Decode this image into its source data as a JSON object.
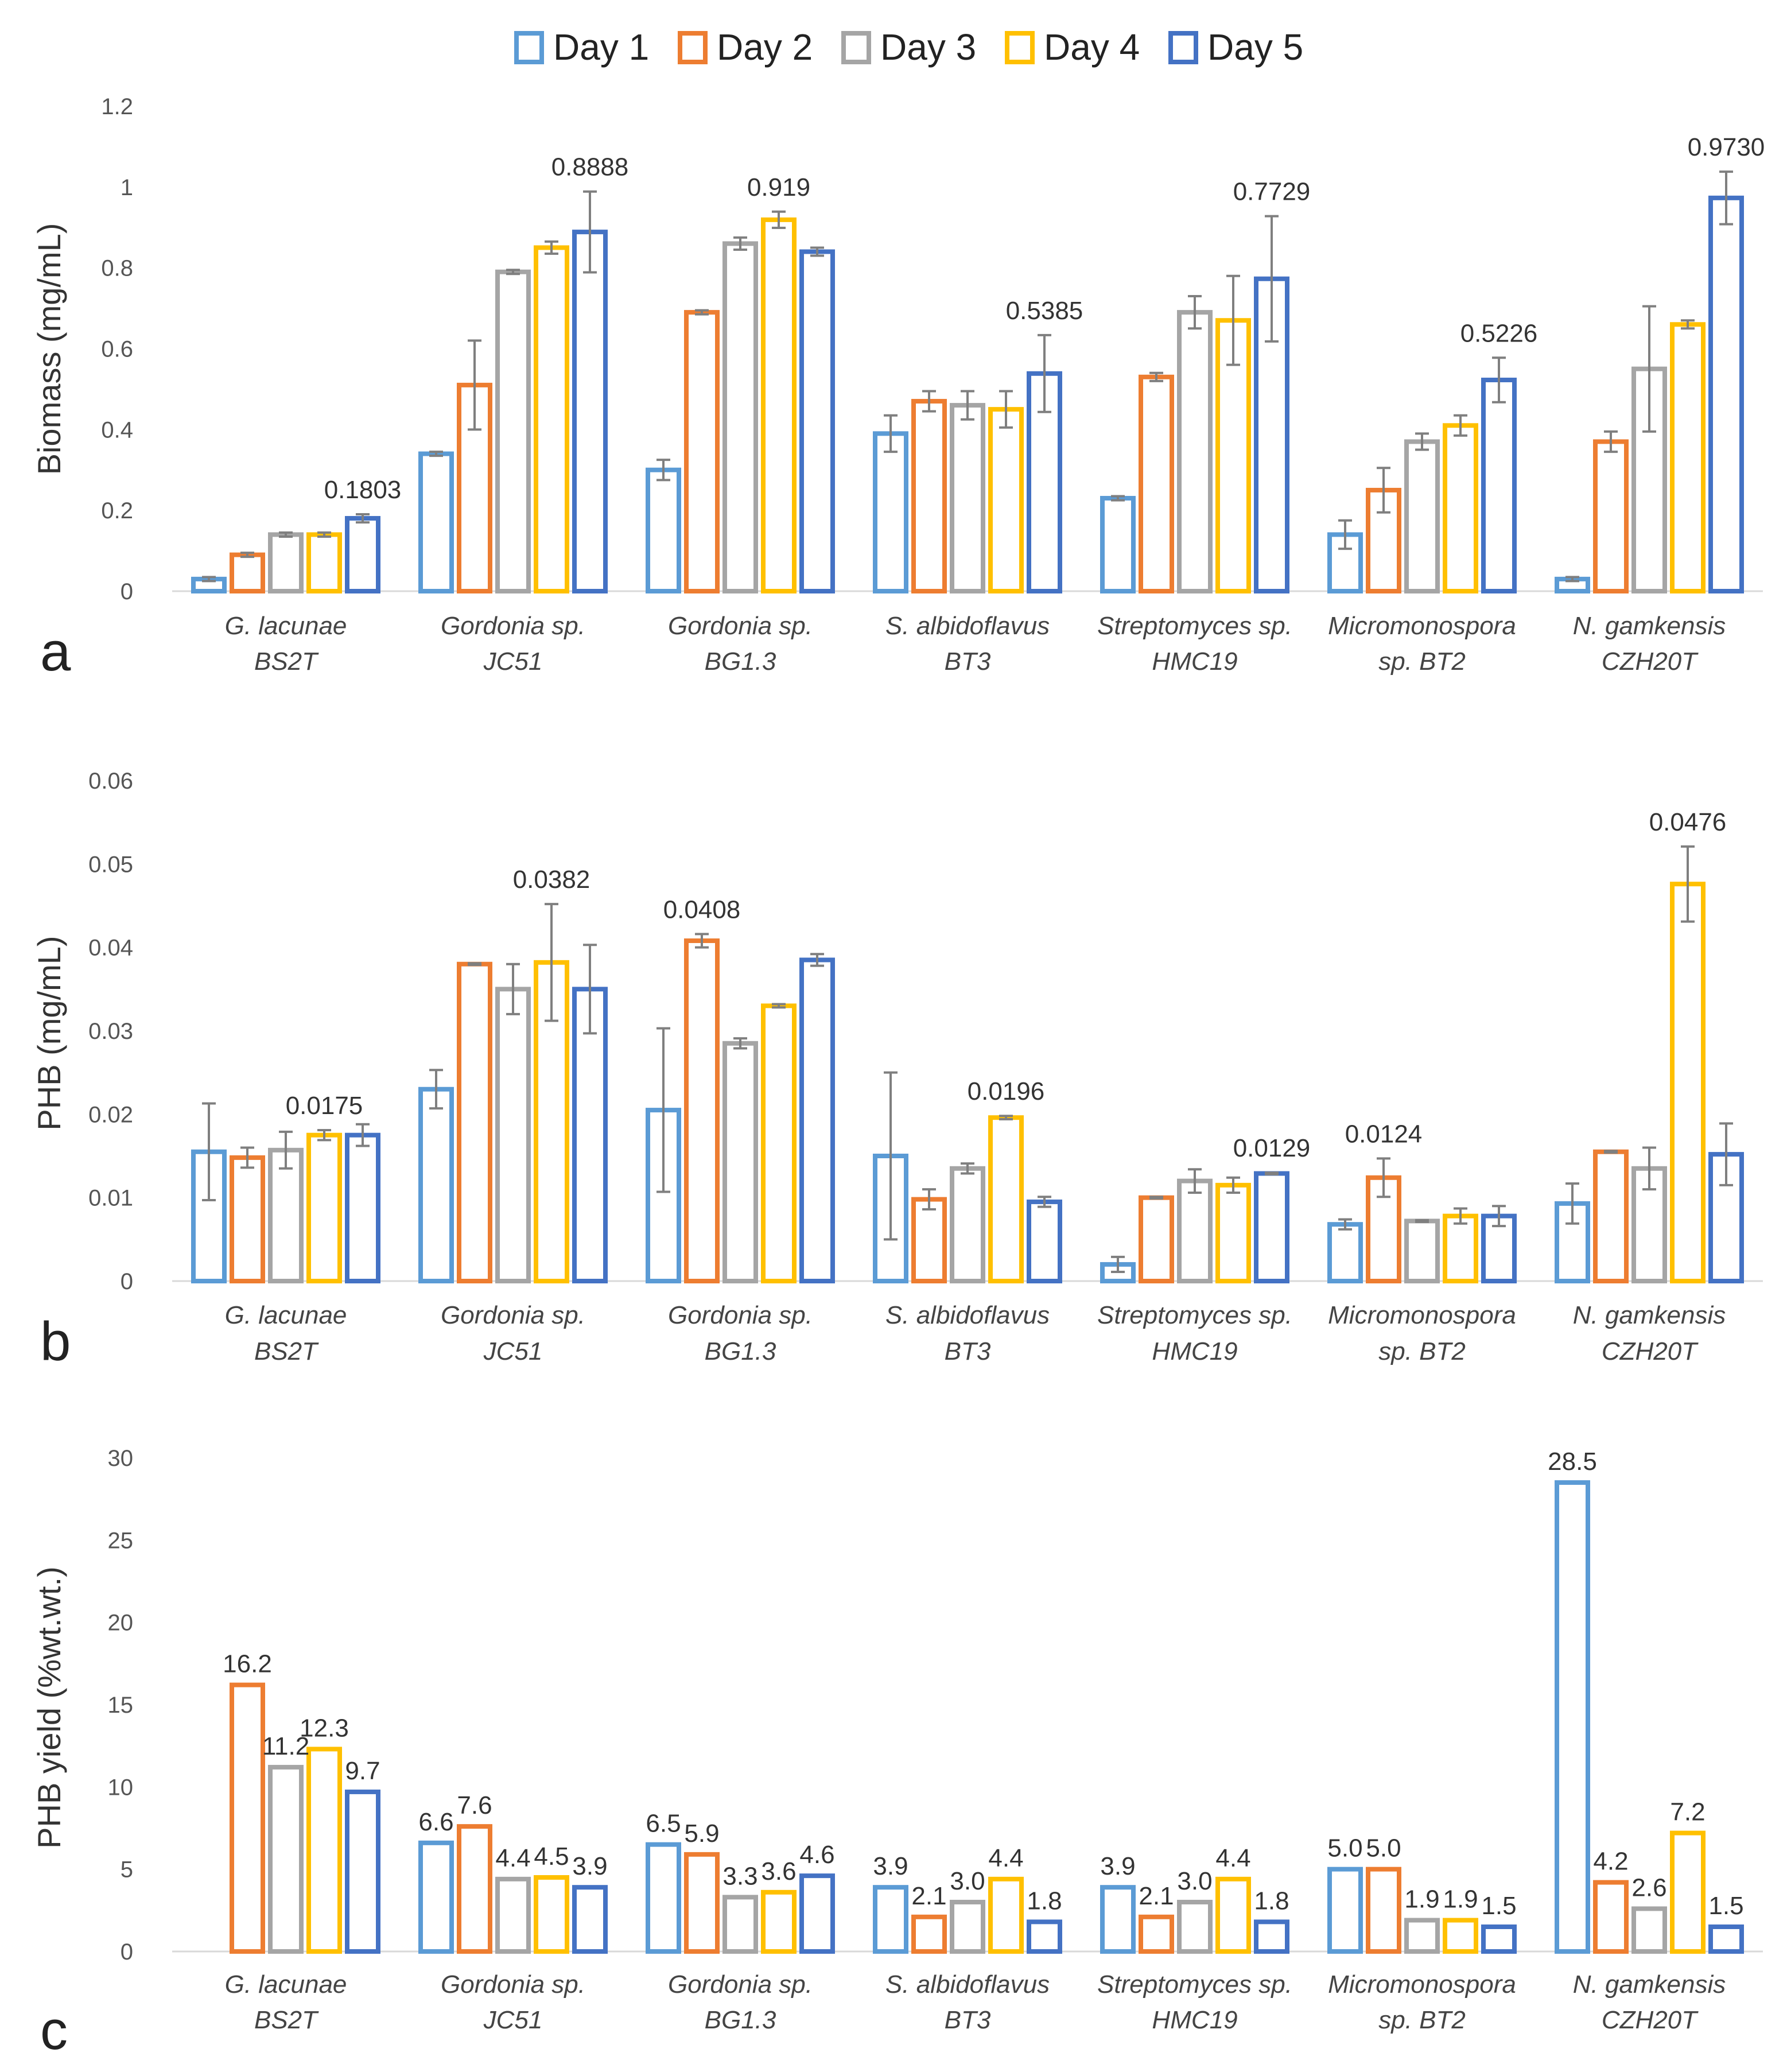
{
  "legend": [
    {
      "name": "Day 1",
      "color": "#5B9BD5"
    },
    {
      "name": "Day 2",
      "color": "#ED7D31"
    },
    {
      "name": "Day 3",
      "color": "#A5A5A5"
    },
    {
      "name": "Day 4",
      "color": "#FFC000"
    },
    {
      "name": "Day 5",
      "color": "#4472C4"
    }
  ],
  "categories": [
    {
      "line1": "G. lacunae",
      "line2": "BS2T"
    },
    {
      "line1": "Gordonia sp.",
      "line2": "JC51"
    },
    {
      "line1": "Gordonia sp.",
      "line2": "BG1.3"
    },
    {
      "line1": "S. albidoflavus",
      "line2": "BT3"
    },
    {
      "line1": "Streptomyces sp.",
      "line2": "HMC19"
    },
    {
      "line1": "Micromonospora",
      "line2": "sp. BT2"
    },
    {
      "line1": "N. gamkensis",
      "line2": "CZH20T"
    }
  ],
  "chart_data": [
    {
      "panel_label": "a",
      "type": "bar",
      "ylabel": "Biomass (mg/mL)",
      "ylim": [
        0,
        1.2
      ],
      "yticks": [
        "0",
        "0.2",
        "0.4",
        "0.6",
        "0.8",
        "1",
        "1.2"
      ],
      "series": [
        {
          "name": "Day 1",
          "values": [
            0.03,
            0.34,
            0.3,
            0.39,
            0.23,
            0.14,
            0.03
          ],
          "errors": [
            0.005,
            0.005,
            0.025,
            0.045,
            0.005,
            0.035,
            0.005
          ]
        },
        {
          "name": "Day 2",
          "values": [
            0.09,
            0.51,
            0.69,
            0.47,
            0.53,
            0.25,
            0.37
          ],
          "errors": [
            0.005,
            0.11,
            0.005,
            0.025,
            0.01,
            0.055,
            0.025
          ]
        },
        {
          "name": "Day 3",
          "values": [
            0.14,
            0.79,
            0.86,
            0.46,
            0.69,
            0.37,
            0.55
          ],
          "errors": [
            0.005,
            0.005,
            0.015,
            0.035,
            0.04,
            0.02,
            0.155
          ]
        },
        {
          "name": "Day 4",
          "values": [
            0.14,
            0.85,
            0.919,
            0.45,
            0.67,
            0.41,
            0.66
          ],
          "errors": [
            0.005,
            0.015,
            0.02,
            0.045,
            0.11,
            0.025,
            0.01
          ]
        },
        {
          "name": "Day 5",
          "values": [
            0.1803,
            0.8888,
            0.84,
            0.5385,
            0.7729,
            0.5226,
            0.973
          ],
          "errors": [
            0.01,
            0.1,
            0.01,
            0.095,
            0.155,
            0.055,
            0.065
          ]
        }
      ],
      "annotations": [
        {
          "category": 0,
          "series": 4,
          "text": "0.1803"
        },
        {
          "category": 1,
          "series": 4,
          "text": "0.8888"
        },
        {
          "category": 2,
          "series": 3,
          "text": "0.919"
        },
        {
          "category": 3,
          "series": 4,
          "text": "0.5385"
        },
        {
          "category": 4,
          "series": 4,
          "text": "0.7729"
        },
        {
          "category": 5,
          "series": 4,
          "text": "0.5226"
        },
        {
          "category": 6,
          "series": 4,
          "text": "0.9730"
        }
      ]
    },
    {
      "panel_label": "b",
      "type": "bar",
      "ylabel": "PHB (mg/mL)",
      "ylim": [
        0,
        0.06
      ],
      "yticks": [
        "0",
        "0.01",
        "0.02",
        "0.03",
        "0.04",
        "0.05",
        "0.06"
      ],
      "series": [
        {
          "name": "Day 1",
          "values": [
            0.0155,
            0.023,
            0.0205,
            0.015,
            0.002,
            0.0068,
            0.0093
          ],
          "errors": [
            0.0058,
            0.0023,
            0.0098,
            0.01,
            0.0009,
            0.0006,
            0.0024
          ]
        },
        {
          "name": "Day 2",
          "values": [
            0.0148,
            0.038,
            0.0408,
            0.0098,
            0.01,
            0.0124,
            0.0155
          ],
          "errors": [
            0.0012,
            0.0001,
            0.0008,
            0.0012,
            0.0001,
            0.0023,
            0.0001
          ]
        },
        {
          "name": "Day 3",
          "values": [
            0.0157,
            0.035,
            0.0285,
            0.0135,
            0.012,
            0.0072,
            0.0135
          ],
          "errors": [
            0.0022,
            0.003,
            0.0006,
            0.0006,
            0.0014,
            0.0001,
            0.0025
          ]
        },
        {
          "name": "Day 4",
          "values": [
            0.0175,
            0.0382,
            0.033,
            0.0196,
            0.0115,
            0.0078,
            0.0476
          ],
          "errors": [
            0.0006,
            0.007,
            0.0002,
            0.0002,
            0.0009,
            0.0009,
            0.0045
          ]
        },
        {
          "name": "Day 5",
          "values": [
            0.0175,
            0.035,
            0.0385,
            0.0095,
            0.0129,
            0.0078,
            0.0152
          ],
          "errors": [
            0.0013,
            0.0053,
            0.0007,
            0.0006,
            0.0001,
            0.0012,
            0.0037
          ]
        }
      ],
      "annotations": [
        {
          "category": 0,
          "series": 3,
          "text": "0.0175"
        },
        {
          "category": 1,
          "series": 3,
          "text": "0.0382"
        },
        {
          "category": 2,
          "series": 1,
          "text": "0.0408"
        },
        {
          "category": 3,
          "series": 3,
          "text": "0.0196"
        },
        {
          "category": 4,
          "series": 4,
          "text": "0.0129"
        },
        {
          "category": 5,
          "series": 1,
          "text": "0.0124"
        },
        {
          "category": 6,
          "series": 3,
          "text": "0.0476"
        }
      ]
    },
    {
      "panel_label": "c",
      "type": "bar",
      "ylabel": "PHB yield (%wt.wt.)",
      "ylim": [
        0,
        30
      ],
      "yticks": [
        "0",
        "5",
        "10",
        "15",
        "20",
        "25",
        "30"
      ],
      "series": [
        {
          "name": "Day 1",
          "values": [
            null,
            6.6,
            6.5,
            3.9,
            3.9,
            5.0,
            28.5
          ],
          "errors": []
        },
        {
          "name": "Day 2",
          "values": [
            16.2,
            7.6,
            5.9,
            2.1,
            2.1,
            5.0,
            4.2
          ],
          "errors": []
        },
        {
          "name": "Day 3",
          "values": [
            11.2,
            4.4,
            3.3,
            3.0,
            3.0,
            1.9,
            2.6
          ],
          "errors": []
        },
        {
          "name": "Day 4",
          "values": [
            12.3,
            4.5,
            3.6,
            4.4,
            4.4,
            1.9,
            7.2
          ],
          "errors": []
        },
        {
          "name": "Day 5",
          "values": [
            9.7,
            3.9,
            4.6,
            1.8,
            1.8,
            1.5,
            1.5
          ],
          "errors": []
        }
      ],
      "value_labels": [
        [
          "",
          "6.6",
          "6.5",
          "3.9",
          "3.9",
          "5.0",
          "28.5"
        ],
        [
          "16.2",
          "7.6",
          "5.9",
          "2.1",
          "2.1",
          "5.0",
          "4.2"
        ],
        [
          "11.2",
          "4.4",
          "3.3",
          "3.0",
          "3.0",
          "1.9",
          "2.6"
        ],
        [
          "12.3",
          "4.5",
          "3.6",
          "4.4",
          "4.4",
          "1.9",
          "7.2"
        ],
        [
          "9.7",
          "3.9",
          "4.6",
          "1.8",
          "1.8",
          "1.5",
          "1.5"
        ]
      ]
    }
  ]
}
